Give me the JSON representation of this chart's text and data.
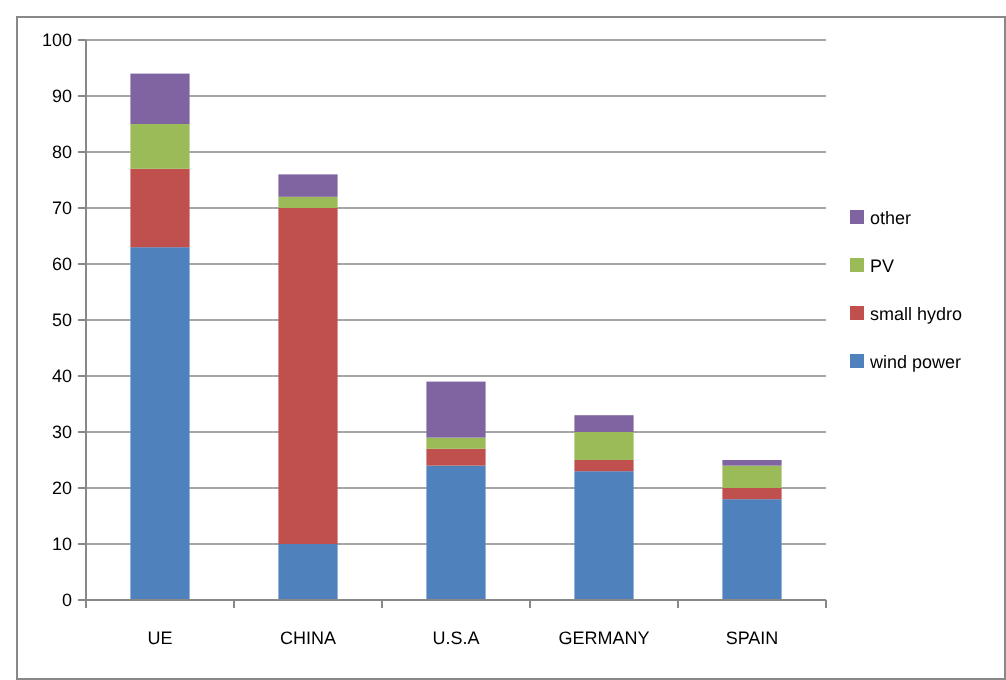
{
  "chart_data": {
    "type": "bar",
    "stacked": true,
    "categories": [
      "UE",
      "CHINA",
      "U.S.A",
      "GERMANY",
      "SPAIN"
    ],
    "series": [
      {
        "name": "wind power",
        "color": "#4f81bd",
        "values": [
          63,
          10,
          24,
          23,
          18
        ]
      },
      {
        "name": "small hydro",
        "color": "#c0504d",
        "values": [
          14,
          60,
          3,
          2,
          2
        ]
      },
      {
        "name": "PV",
        "color": "#9bbb59",
        "values": [
          8,
          2,
          2,
          5,
          4
        ]
      },
      {
        "name": "other",
        "color": "#8064a2",
        "values": [
          9,
          4,
          10,
          3,
          1
        ]
      }
    ],
    "ylim": [
      0,
      100
    ],
    "yticks": [
      0,
      10,
      20,
      30,
      40,
      50,
      60,
      70,
      80,
      90,
      100
    ],
    "grid": "y",
    "legend": "right"
  }
}
